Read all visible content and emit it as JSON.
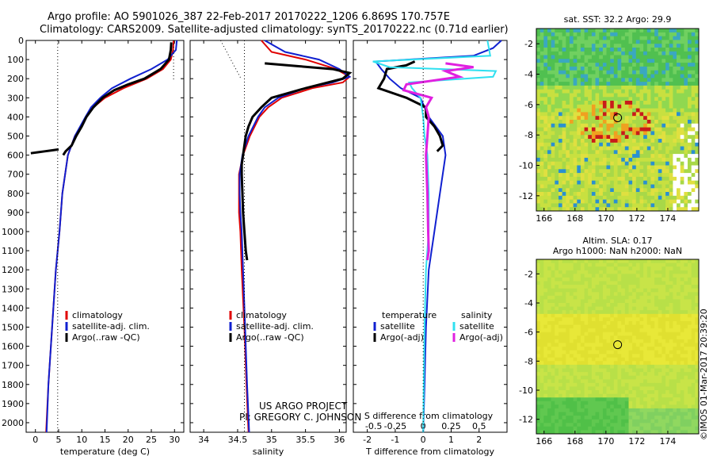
{
  "header": {
    "line1": "Argo profile: AO 5901026_387 22-Feb-2017 20170222_1206 6.869S 170.757E",
    "line2": "Climatology: CARS2009. Satellite-adjusted climatology: synTS_20170222.nc (0.71d earlier)"
  },
  "colors": {
    "climatology": "#e00000",
    "satellite": "#1020d0",
    "argo": "#000000",
    "salinity_sat": "#30e0f0",
    "salinity_argo": "#e020e0"
  },
  "chart_data": [
    {
      "id": "temperature",
      "type": "line",
      "xlabel": "temperature (deg C)",
      "xlim": [
        -2,
        32
      ],
      "xticks": [
        0,
        5,
        10,
        15,
        20,
        25,
        30
      ],
      "ylim": [
        0,
        2050
      ],
      "yticks": [
        0,
        100,
        200,
        300,
        400,
        500,
        600,
        700,
        800,
        900,
        1000,
        1100,
        1200,
        1300,
        1400,
        1500,
        1600,
        1700,
        1800,
        1900,
        2000
      ],
      "legend": {
        "position": "bottom-right",
        "items": [
          "climatology",
          "satellite-adj. clim.",
          "Argo(..raw -QC)"
        ]
      },
      "series": [
        {
          "name": "climatology",
          "depth": [
            0,
            50,
            100,
            150,
            200,
            250,
            300,
            350,
            400,
            500,
            600,
            800,
            1000,
            1200,
            1500,
            1800,
            2050
          ],
          "values": [
            29.8,
            29.7,
            29.2,
            27.5,
            24,
            19,
            15,
            12.5,
            11,
            8.5,
            7,
            5.8,
            5.2,
            4.4,
            3.6,
            2.8,
            2.3
          ]
        },
        {
          "name": "satellite-adj. clim.",
          "depth": [
            0,
            50,
            100,
            150,
            200,
            250,
            300,
            350,
            400,
            500,
            600,
            800,
            1000,
            1200,
            1500,
            1800,
            2050
          ],
          "values": [
            30.5,
            30.3,
            28.5,
            25,
            20.5,
            16.5,
            14,
            12,
            10.8,
            8.5,
            7,
            5.8,
            5.2,
            4.4,
            3.6,
            2.8,
            2.4
          ]
        },
        {
          "name": "Argo(..raw -QC)",
          "depth": [
            10,
            50,
            100,
            150,
            200,
            230,
            260,
            300,
            350,
            400,
            450,
            500,
            550,
            580,
            600
          ],
          "values": [
            29.3,
            29.2,
            28.8,
            27,
            23.5,
            20,
            17,
            14.5,
            12.5,
            11,
            10,
            8.8,
            7.8,
            6.5,
            6
          ]
        },
        {
          "name": "Argo bad points",
          "depth": [
            570,
            575,
            580,
            585,
            590
          ],
          "values": [
            5,
            3.5,
            2,
            0.5,
            -1
          ]
        },
        {
          "name": "reference",
          "depth": [
            0,
            2050
          ],
          "values": [
            4.8,
            4.8
          ]
        },
        {
          "name": "reference2",
          "depth": [
            0,
            210
          ],
          "values": [
            29.8,
            29.8
          ]
        }
      ]
    },
    {
      "id": "salinity",
      "type": "line",
      "xlabel": "salinity",
      "xlim": [
        33.8,
        36.1
      ],
      "xticks": [
        34,
        34.5,
        35,
        35.5,
        36
      ],
      "ylim": [
        0,
        2050
      ],
      "legend": {
        "position": "bottom-right",
        "items": [
          "climatology",
          "satellite-adj. clim.",
          "Argo(..raw -QC)"
        ]
      },
      "series": [
        {
          "name": "climatology",
          "depth": [
            0,
            60,
            100,
            150,
            190,
            220,
            250,
            300,
            350,
            400,
            500,
            600,
            700,
            800,
            900,
            1000,
            1200,
            1500,
            1800,
            2050
          ],
          "values": [
            34.85,
            35.0,
            35.5,
            35.95,
            36.15,
            36.05,
            35.6,
            35.15,
            34.95,
            34.82,
            34.68,
            34.58,
            34.52,
            34.52,
            34.52,
            34.54,
            34.56,
            34.6,
            34.63,
            34.66
          ]
        },
        {
          "name": "satellite-adj. clim.",
          "depth": [
            0,
            60,
            100,
            150,
            190,
            220,
            250,
            300,
            350,
            400,
            500,
            600,
            700,
            800,
            900,
            1000,
            1200,
            1500,
            1800,
            2050
          ],
          "values": [
            34.9,
            35.2,
            35.7,
            36.0,
            36.15,
            35.9,
            35.5,
            35.1,
            34.9,
            34.8,
            34.66,
            34.57,
            34.53,
            34.53,
            34.54,
            34.56,
            34.58,
            34.61,
            34.64,
            34.67
          ]
        },
        {
          "name": "Argo(..raw -QC)",
          "depth": [
            120,
            135,
            150,
            170,
            200,
            250,
            300,
            350,
            400,
            450,
            500,
            550,
            600,
            650,
            700,
            800,
            900,
            1000,
            1100,
            1150
          ],
          "values": [
            34.9,
            35.4,
            35.9,
            36.15,
            36.05,
            35.5,
            35.0,
            34.85,
            34.72,
            34.66,
            34.62,
            34.6,
            34.58,
            34.56,
            34.56,
            34.57,
            34.58,
            34.6,
            34.62,
            34.64
          ]
        },
        {
          "name": "reference",
          "depth": [
            0,
            2050
          ],
          "values": [
            34.6,
            34.6
          ]
        },
        {
          "name": "reference-dotted",
          "depth": [
            0,
            200
          ],
          "values": [
            34.25,
            34.55
          ]
        }
      ],
      "annotation": [
        "US ARGO PROJECT",
        "PI: GREGORY C. JOHNSON"
      ]
    },
    {
      "id": "differences",
      "type": "line",
      "xlabel": "T difference from climatology",
      "xlabel2": "S difference from climatology",
      "xlim": [
        -2.5,
        3
      ],
      "xticks": [
        -2,
        -1,
        0,
        1,
        2
      ],
      "xticks2": [
        "-0.5",
        "-0.25",
        "0",
        "0.25",
        "0.5"
      ],
      "ylim": [
        0,
        2050
      ],
      "legend": {
        "position": "bottom-right",
        "headers": [
          "temperature",
          "salinity"
        ],
        "items": [
          "satellite",
          "Argo(-adj)",
          "satellite",
          "Argo(-adj)"
        ]
      },
      "series": [
        {
          "name": "T satellite",
          "depth": [
            0,
            40,
            80,
            110,
            150,
            200,
            250,
            300,
            400,
            500,
            600,
            800,
            1000,
            1200,
            1500,
            1800,
            2050
          ],
          "values": [
            2.8,
            2.5,
            1.8,
            -1.7,
            -1.5,
            -1.2,
            -0.8,
            -0.1,
            0.2,
            0.7,
            0.8,
            0.6,
            0.4,
            0.2,
            0.1,
            0.05,
            0
          ]
        },
        {
          "name": "T Argo",
          "depth": [
            110,
            130,
            150,
            200,
            250,
            300,
            350,
            400,
            450,
            500,
            550,
            580
          ],
          "values": [
            -0.3,
            -0.6,
            -1.3,
            -1.4,
            -1.6,
            -0.6,
            0.1,
            0.1,
            0.4,
            0.6,
            0.7,
            0.5
          ]
        },
        {
          "name": "S satellite",
          "depth": [
            0,
            80,
            110,
            140,
            160,
            190,
            220,
            250,
            300,
            400,
            500,
            600,
            800,
            1000,
            1200,
            1500,
            1800,
            2050
          ],
          "values": [
            2.3,
            2.4,
            -1.8,
            -1.2,
            2.6,
            2.5,
            -0.5,
            -0.4,
            -0.1,
            0,
            0.05,
            0.15,
            0.2,
            0.2,
            0.1,
            0.05,
            0.02,
            0
          ]
        },
        {
          "name": "S Argo",
          "depth": [
            120,
            140,
            160,
            190,
            230,
            260,
            300,
            350,
            400,
            500,
            600,
            800,
            1000,
            1100,
            1150
          ],
          "values": [
            0.8,
            1.8,
            0.8,
            1.3,
            -0.6,
            -0.7,
            0.3,
            0.1,
            0.2,
            0.15,
            0.1,
            0.15,
            0.18,
            0.2,
            0.15
          ]
        },
        {
          "name": "zero",
          "depth": [
            0,
            2050
          ],
          "values": [
            0,
            0
          ]
        }
      ]
    },
    {
      "id": "sst-map",
      "type": "heatmap",
      "title": "sat. SST: 32.2 Argo: 29.9",
      "xticks": [
        "166",
        "168",
        "170",
        "172",
        "174"
      ],
      "yticks": [
        "-2",
        "-4",
        "-6",
        "-8",
        "-10",
        "-12"
      ],
      "xlim": [
        165.5,
        176
      ],
      "ylim": [
        -13,
        -1
      ],
      "marker": {
        "lon": 170.757,
        "lat": -6.869
      }
    },
    {
      "id": "sla-map",
      "type": "heatmap",
      "title": "Altim. SLA: 0.17",
      "subtitle": "Argo h1000: NaN h2000: NaN",
      "xticks": [
        "166",
        "168",
        "170",
        "172",
        "174"
      ],
      "yticks": [
        "-2",
        "-4",
        "-6",
        "-8",
        "-10",
        "-12"
      ],
      "xlim": [
        165.5,
        176
      ],
      "ylim": [
        -13,
        -1
      ],
      "marker": {
        "lon": 170.757,
        "lat": -6.869
      }
    }
  ],
  "footer": {
    "watermark": "©IMOS 01-Mar-2017 20:39:20"
  }
}
